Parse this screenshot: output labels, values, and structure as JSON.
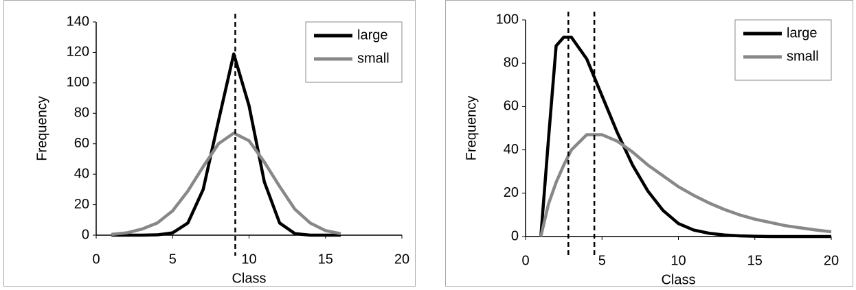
{
  "chart_data": [
    {
      "type": "line",
      "xlabel": "Class",
      "ylabel": "Frequency",
      "x": [
        1,
        2,
        3,
        4,
        5,
        6,
        7,
        8,
        9,
        10,
        11,
        12,
        13,
        14,
        15,
        16
      ],
      "series": [
        {
          "name": "large",
          "color": "#000000",
          "values": [
            0,
            0,
            0,
            0.2,
            1.5,
            8,
            30,
            75,
            119,
            85,
            35,
            8,
            1,
            0,
            0,
            0
          ]
        },
        {
          "name": "small",
          "color": "#888888",
          "values": [
            0.5,
            1.5,
            4,
            8,
            16,
            29,
            45,
            60,
            67,
            62,
            48,
            32,
            17,
            8,
            3,
            1
          ]
        }
      ],
      "vlines": [
        9.1
      ],
      "xlim": [
        0,
        20
      ],
      "xticks": [
        0,
        5,
        10,
        15,
        20
      ],
      "ylim": [
        0,
        140
      ],
      "yticks": [
        0,
        20,
        40,
        60,
        80,
        100,
        120,
        140
      ],
      "legend": "upper right"
    },
    {
      "type": "line",
      "xlabel": "Class",
      "ylabel": "Frequency",
      "x": [
        1,
        1.5,
        2,
        2.5,
        3,
        4,
        5,
        6,
        7,
        8,
        9,
        10,
        11,
        12,
        13,
        14,
        15,
        16,
        17,
        18,
        19,
        20
      ],
      "series": [
        {
          "name": "large",
          "color": "#000000",
          "values": [
            0,
            45,
            88,
            92,
            92,
            82,
            65,
            48,
            33,
            21,
            12,
            6,
            3,
            1.5,
            0.7,
            0.3,
            0.1,
            0,
            0,
            0,
            0,
            0
          ]
        },
        {
          "name": "small",
          "color": "#888888",
          "values": [
            0,
            15,
            25,
            33,
            40,
            47,
            47,
            44,
            39,
            33,
            28,
            23,
            19,
            15.5,
            12.5,
            10,
            8,
            6.5,
            5,
            4,
            3,
            2.2
          ]
        }
      ],
      "vlines": [
        2.8,
        4.5
      ],
      "xlim": [
        0,
        20
      ],
      "xticks": [
        0,
        5,
        10,
        15,
        20
      ],
      "ylim": [
        0,
        100
      ],
      "yticks": [
        0,
        20,
        40,
        60,
        80,
        100
      ],
      "legend": "upper right"
    }
  ]
}
